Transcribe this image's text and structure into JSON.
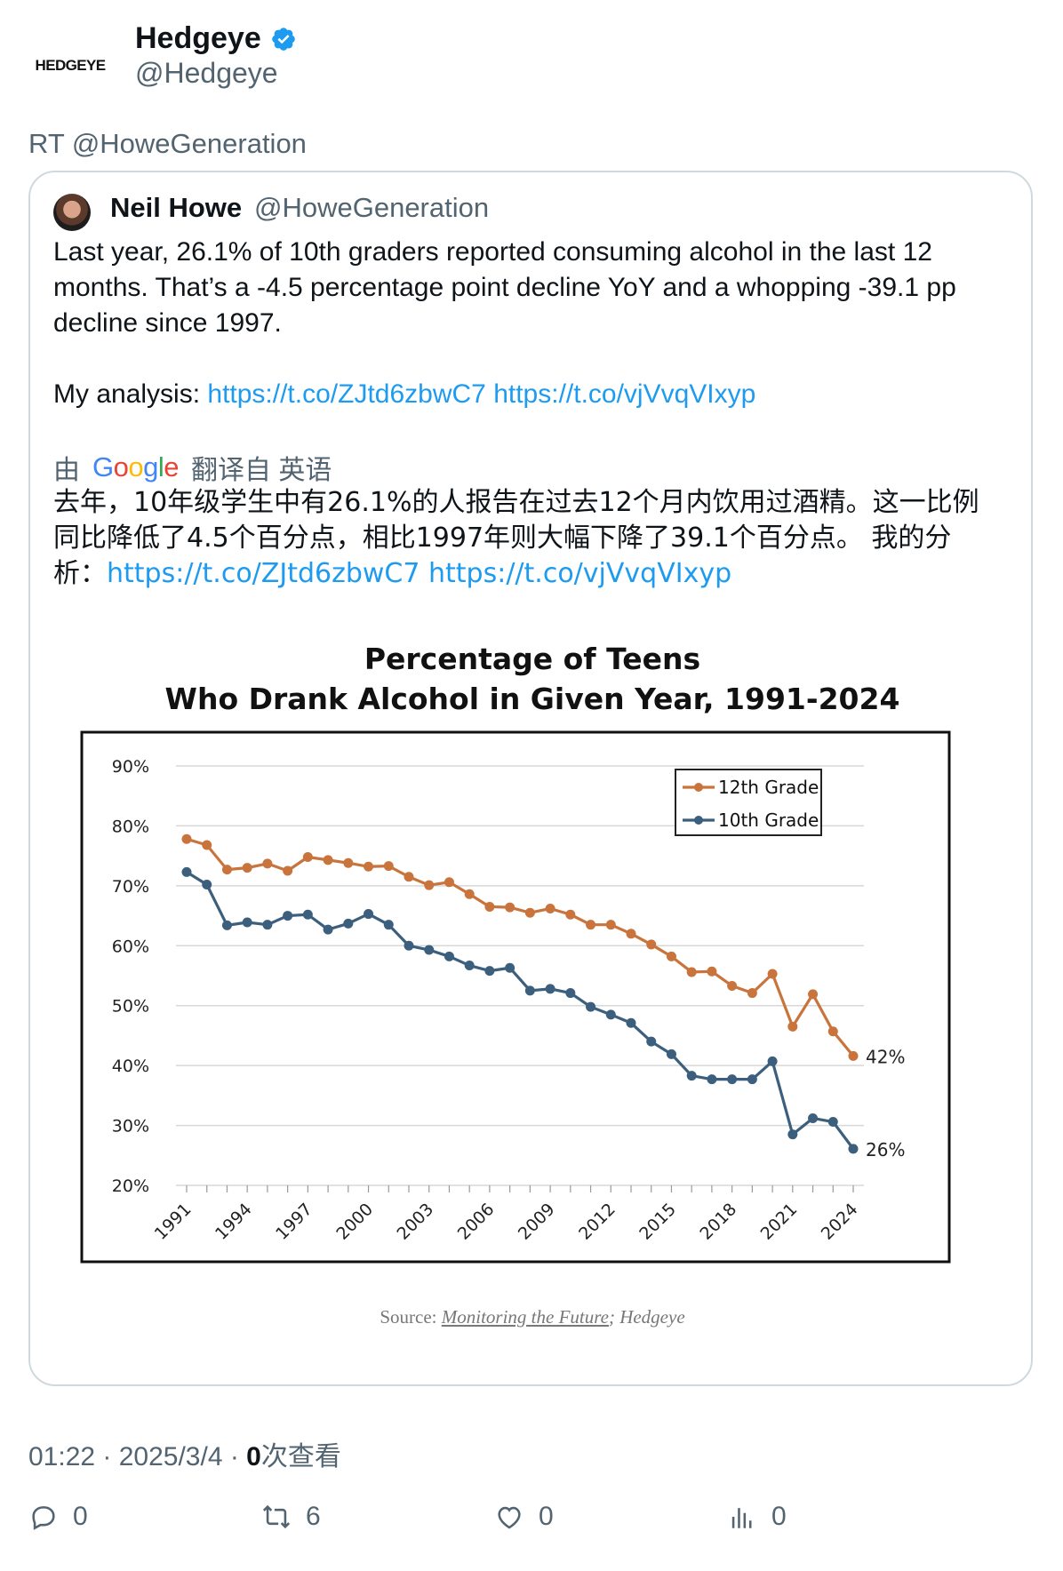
{
  "header": {
    "logo_text": "HEDGEYE",
    "name": "Hedgeye",
    "handle": "@Hedgeye",
    "retweet_line": "RT @HoweGeneration"
  },
  "quoted": {
    "name": "Neil Howe",
    "handle": "@HoweGeneration",
    "text_p1": "Last year, 26.1% of 10th graders reported consuming alcohol in the last 12 months. That’s a -4.5 percentage point decline YoY and a whopping -39.1 pp decline since 1997.",
    "analysis_label": "My analysis: ",
    "link1": "https://t.co/ZJtd6zbwC7",
    "link2": "https://t.co/vjVvqVIxyp",
    "translate_prefix": "由",
    "translate_suffix": "翻译自 英语",
    "google_word": "Google",
    "translated_text": "去年，10年级学生中有26.1%的人报告在过去12个月内饮用过酒精。这一比例同比降低了4.5个百分点，相比1997年则大幅下降了39.1个百分点。 我的分析："
  },
  "chart_data": {
    "type": "line",
    "title_line1": "Percentage of Teens",
    "title_line2": "Who Drank Alcohol in Given Year, 1991-2024",
    "x": [
      1991,
      1992,
      1993,
      1994,
      1995,
      1996,
      1997,
      1998,
      1999,
      2000,
      2001,
      2002,
      2003,
      2004,
      2005,
      2006,
      2007,
      2008,
      2009,
      2010,
      2011,
      2012,
      2013,
      2014,
      2015,
      2016,
      2017,
      2018,
      2019,
      2020,
      2021,
      2022,
      2023,
      2024
    ],
    "x_tick_labels": [
      "1991",
      "1994",
      "1997",
      "2000",
      "2003",
      "2006",
      "2009",
      "2012",
      "2015",
      "2018",
      "2021",
      "2024"
    ],
    "y_tick_labels": [
      "20%",
      "30%",
      "40%",
      "50%",
      "60%",
      "70%",
      "80%",
      "90%"
    ],
    "ylim": [
      20,
      90
    ],
    "grid": true,
    "legend_position": "top-right",
    "series": [
      {
        "name": "12th Grade",
        "color": "#c8743c",
        "values": [
          77.8,
          76.8,
          72.7,
          73.0,
          73.7,
          72.5,
          74.8,
          74.3,
          73.8,
          73.2,
          73.3,
          71.5,
          70.1,
          70.6,
          68.6,
          66.5,
          66.4,
          65.5,
          66.2,
          65.2,
          63.5,
          63.5,
          62.0,
          60.2,
          58.2,
          55.6,
          55.7,
          53.3,
          52.1,
          55.3,
          46.5,
          51.9,
          45.7,
          41.6
        ],
        "end_label": "42%"
      },
      {
        "name": "10th Grade",
        "color": "#3b5f7d",
        "values": [
          72.3,
          70.2,
          63.4,
          63.9,
          63.5,
          65.0,
          65.2,
          62.7,
          63.7,
          65.3,
          63.5,
          60.0,
          59.3,
          58.2,
          56.7,
          55.8,
          56.3,
          52.5,
          52.8,
          52.1,
          49.8,
          48.5,
          47.1,
          44.0,
          41.9,
          38.3,
          37.7,
          37.7,
          37.7,
          40.7,
          28.5,
          31.2,
          30.6,
          26.1
        ],
        "end_label": "26%"
      }
    ],
    "source_prefix": "Source: ",
    "source_link": "Monitoring the Future",
    "source_suffix": "; Hedgeye"
  },
  "meta": {
    "time": "01:22 · 2025/3/4 · ",
    "views_num": "0",
    "views_label": "次查看"
  },
  "actions": {
    "reply_count": "0",
    "retweet_count": "6",
    "like_count": "0",
    "views_count": "0"
  },
  "colors": {
    "link": "#1d9bf0",
    "muted": "#536471",
    "verified": "#1d9bf0"
  }
}
